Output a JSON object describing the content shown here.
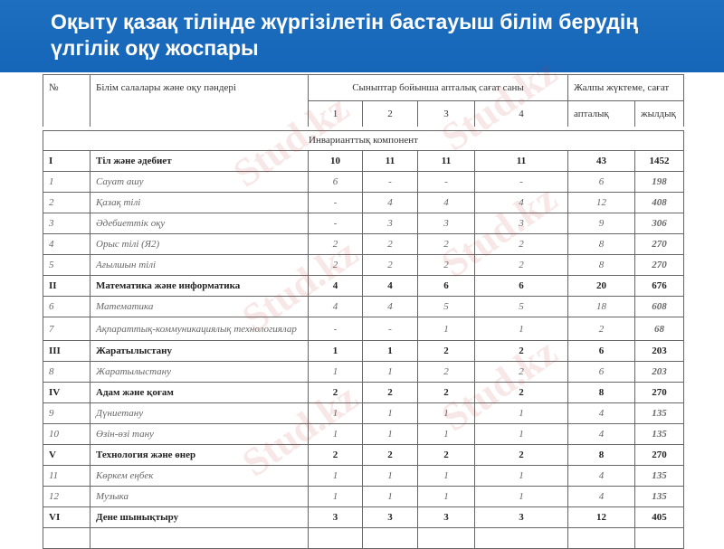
{
  "title": "Оқыту қазақ тілінде жүргізілетін бастауыш білім берудің үлгілік оқу жоспары",
  "header": {
    "num": "№",
    "subject": "Білім салалары және оқу пәндері",
    "weekly_by_grade": "Сыныптар бойынша апталық сағат саны",
    "total_load": "Жалпы жүктеме, сағат",
    "grades": [
      "1",
      "2",
      "3",
      "4"
    ],
    "weekly": "апталық",
    "yearly": "жылдық"
  },
  "section": "Инварианттық компонент",
  "rows": [
    {
      "type": "b",
      "n": "I",
      "name": "Тіл және әдебиет",
      "v": [
        "10",
        "11",
        "11",
        "11",
        "43",
        "1452"
      ]
    },
    {
      "type": "s",
      "n": "1",
      "name": "Сауат ашу",
      "v": [
        "6",
        "-",
        "-",
        "-",
        "6",
        "198"
      ]
    },
    {
      "type": "s",
      "n": "2",
      "name": "Қазақ тілі",
      "v": [
        "-",
        "4",
        "4",
        "4",
        "12",
        "408"
      ]
    },
    {
      "type": "s",
      "n": "3",
      "name": "Әдебиеттік оқу",
      "v": [
        "-",
        "3",
        "3",
        "3",
        "9",
        "306"
      ]
    },
    {
      "type": "s",
      "n": "4",
      "name": "Орыс тілі (Я2)",
      "v": [
        "2",
        "2",
        "2",
        "2",
        "8",
        "270"
      ]
    },
    {
      "type": "s",
      "n": "5",
      "name": "Ағылшын тілі",
      "v": [
        "2",
        "2",
        "2",
        "2",
        "8",
        "270"
      ]
    },
    {
      "type": "b",
      "n": "II",
      "name": "Математика және информатика",
      "v": [
        "4",
        "4",
        "6",
        "6",
        "20",
        "676"
      ]
    },
    {
      "type": "s",
      "n": "6",
      "name": "Математика",
      "v": [
        "4",
        "4",
        "5",
        "5",
        "18",
        "608"
      ]
    },
    {
      "type": "s",
      "n": "7",
      "name": "Ақпараттық-коммуникациялық технологиялар",
      "v": [
        "-",
        "-",
        "1",
        "1",
        "2",
        "68"
      ]
    },
    {
      "type": "b",
      "n": "III",
      "name": "Жаратылыстану",
      "v": [
        "1",
        "1",
        "2",
        "2",
        "6",
        "203"
      ]
    },
    {
      "type": "s",
      "n": "8",
      "name": "Жаратылыстану",
      "v": [
        "1",
        "1",
        "2",
        "2",
        "6",
        "203"
      ]
    },
    {
      "type": "b",
      "n": "IV",
      "name": "Адам және қоғам",
      "v": [
        "2",
        "2",
        "2",
        "2",
        "8",
        "270"
      ]
    },
    {
      "type": "s",
      "n": "9",
      "name": "Дүниетану",
      "v": [
        "1",
        "1",
        "1",
        "1",
        "4",
        "135"
      ]
    },
    {
      "type": "s",
      "n": "10",
      "name": "Өзін-өзі тану",
      "v": [
        "1",
        "1",
        "1",
        "1",
        "4",
        "135"
      ]
    },
    {
      "type": "b",
      "n": "V",
      "name": "Технология және өнер",
      "v": [
        "2",
        "2",
        "2",
        "2",
        "8",
        "270"
      ]
    },
    {
      "type": "s",
      "n": "11",
      "name": "Көркем еңбек",
      "v": [
        "1",
        "1",
        "1",
        "1",
        "4",
        "135"
      ]
    },
    {
      "type": "s",
      "n": "12",
      "name": "Музыка",
      "v": [
        "1",
        "1",
        "1",
        "1",
        "4",
        "135"
      ]
    },
    {
      "type": "b",
      "n": "VI",
      "name": "Дене шынықтыру",
      "v": [
        "3",
        "3",
        "3",
        "3",
        "12",
        "405"
      ]
    }
  ],
  "watermark": "Stud.kz"
}
